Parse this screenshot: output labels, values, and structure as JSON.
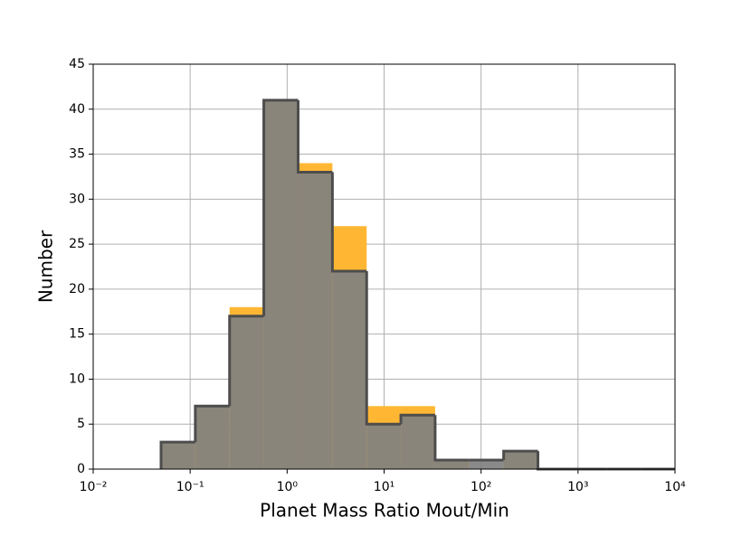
{
  "chart_data": {
    "type": "histogram",
    "xlabel": "Planet Mass Ratio Mout/Min",
    "ylabel": "Number",
    "xscale": "log",
    "bins": [
      0.0501,
      0.113,
      0.255,
      0.575,
      1.298,
      2.93,
      6.61,
      14.9,
      33.6,
      75.9,
      171,
      386,
      871,
      1965,
      4434,
      10000
    ],
    "series": [
      {
        "color": "#ffb733",
        "values": [
          3,
          7,
          18,
          41,
          34,
          27,
          7,
          7,
          1,
          0,
          2,
          0,
          0,
          0,
          0
        ]
      },
      {
        "color": "#808080",
        "values": [
          3,
          7,
          17,
          41,
          33,
          22,
          5,
          6,
          1,
          1,
          2,
          0,
          0,
          0,
          0
        ]
      }
    ],
    "xlim": [
      0.01,
      10000
    ],
    "xticks": [
      {
        "value": 0.01,
        "label": "10⁻²"
      },
      {
        "value": 0.1,
        "label": "10⁻¹"
      },
      {
        "value": 1,
        "label": "10⁰"
      },
      {
        "value": 10,
        "label": "10¹"
      },
      {
        "value": 100,
        "label": "10²"
      },
      {
        "value": 1000,
        "label": "10³"
      },
      {
        "value": 10000,
        "label": "10⁴"
      }
    ],
    "ylim": [
      0,
      45
    ],
    "yticks": [
      0,
      5,
      10,
      15,
      20,
      25,
      30,
      35,
      40,
      45
    ],
    "grid": true
  }
}
